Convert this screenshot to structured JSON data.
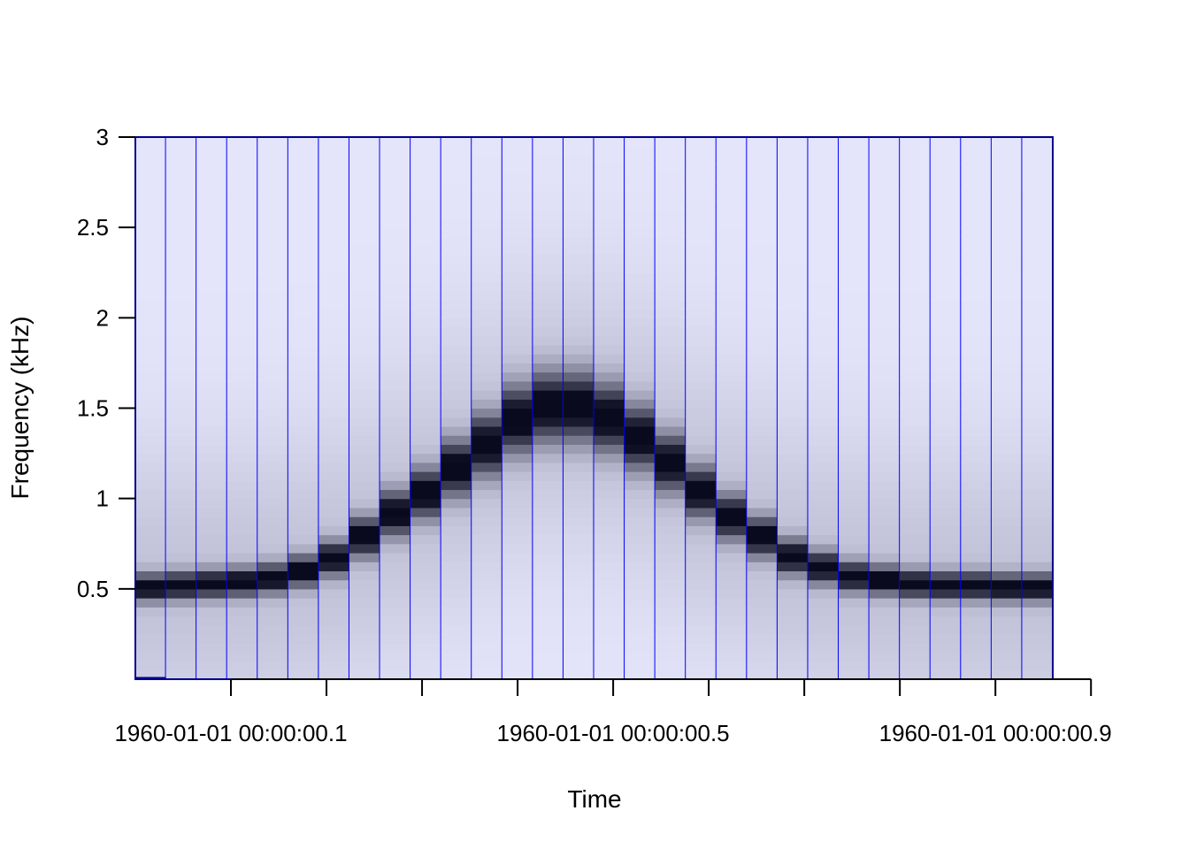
{
  "chart_data": {
    "type": "heatmap",
    "title": "",
    "xlabel": "Time",
    "ylabel": "Frequency (kHz)",
    "x_unit": "seconds past 1960-01-01 00:00:00",
    "xlim": [
      0.0,
      0.96
    ],
    "ylim": [
      0.0,
      3.0
    ],
    "y_ticks": [
      {
        "value": 0.5,
        "label": "0.5"
      },
      {
        "value": 1.0,
        "label": "1"
      },
      {
        "value": 1.5,
        "label": "1.5"
      },
      {
        "value": 2.0,
        "label": "2"
      },
      {
        "value": 2.5,
        "label": "2.5"
      },
      {
        "value": 3.0,
        "label": "3"
      }
    ],
    "x_ticks": [
      {
        "value": 0.1,
        "label": "1960-01-01 00:00:00.1"
      },
      {
        "value": 0.2,
        "label": ""
      },
      {
        "value": 0.3,
        "label": ""
      },
      {
        "value": 0.4,
        "label": ""
      },
      {
        "value": 0.5,
        "label": "1960-01-01 00:00:00.5"
      },
      {
        "value": 0.6,
        "label": ""
      },
      {
        "value": 0.7,
        "label": ""
      },
      {
        "value": 0.8,
        "label": ""
      },
      {
        "value": 0.9,
        "label": "1960-01-01 00:00:00.9"
      },
      {
        "value": 1.0,
        "label": ""
      }
    ],
    "frame_width_s": 0.032,
    "frames_peak_frequency_khz": [
      0.51,
      0.52,
      0.53,
      0.54,
      0.56,
      0.6,
      0.67,
      0.79,
      0.92,
      1.03,
      1.17,
      1.3,
      1.44,
      1.51,
      1.51,
      1.45,
      1.34,
      1.2,
      1.04,
      0.9,
      0.79,
      0.68,
      0.62,
      0.57,
      0.55,
      0.53,
      0.52,
      0.52,
      0.51,
      0.51
    ],
    "colors": {
      "background": "#e4e4fb",
      "peak": "#0a0a1e",
      "frame_border": "#0000ff",
      "plot_border": "#00008b"
    }
  }
}
